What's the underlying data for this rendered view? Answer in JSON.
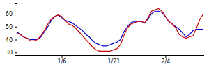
{
  "chart_data": {
    "type": "line",
    "categories": [
      null,
      null,
      null,
      null,
      null,
      null,
      null,
      null,
      null,
      null,
      null,
      null,
      null,
      "1/6",
      null,
      null,
      null,
      null,
      null,
      null,
      null,
      null,
      null,
      null,
      null,
      null,
      null,
      null,
      "1/21",
      null,
      null,
      null,
      null,
      null,
      null,
      null,
      null,
      null,
      null,
      null,
      null,
      null,
      null,
      "2/4",
      null,
      null,
      null,
      null,
      null,
      null,
      null,
      null,
      null,
      null,
      null
    ],
    "series": [
      {
        "color": "#0000cc",
        "values": [
          46,
          44,
          42,
          41,
          40,
          40,
          40,
          42,
          46,
          50,
          55,
          58,
          59,
          57,
          55,
          54,
          53,
          51,
          49,
          47,
          44,
          42,
          39,
          37,
          36,
          35,
          35,
          36,
          37,
          38,
          40,
          46,
          50,
          53,
          54,
          54,
          54,
          53,
          56,
          60,
          62,
          62,
          61,
          58,
          54,
          52,
          50,
          48,
          45,
          42,
          44,
          47,
          48,
          48,
          48
        ]
      },
      {
        "color": "#cc0000",
        "values": [
          45,
          44,
          42,
          41,
          39,
          39,
          40,
          43,
          47,
          52,
          56,
          58,
          59,
          58,
          55,
          52,
          51,
          49,
          46,
          43,
          40,
          37,
          34,
          32,
          31,
          31,
          31,
          31,
          32,
          33,
          36,
          43,
          49,
          52,
          53,
          54,
          54,
          53,
          57,
          62,
          63,
          64,
          62,
          58,
          54,
          52,
          49,
          44,
          42,
          41,
          42,
          43,
          49,
          56,
          60
        ]
      }
    ],
    "ylim": [
      28,
      68
    ],
    "yticks": [
      30,
      40,
      50,
      60
    ],
    "grid": false
  }
}
